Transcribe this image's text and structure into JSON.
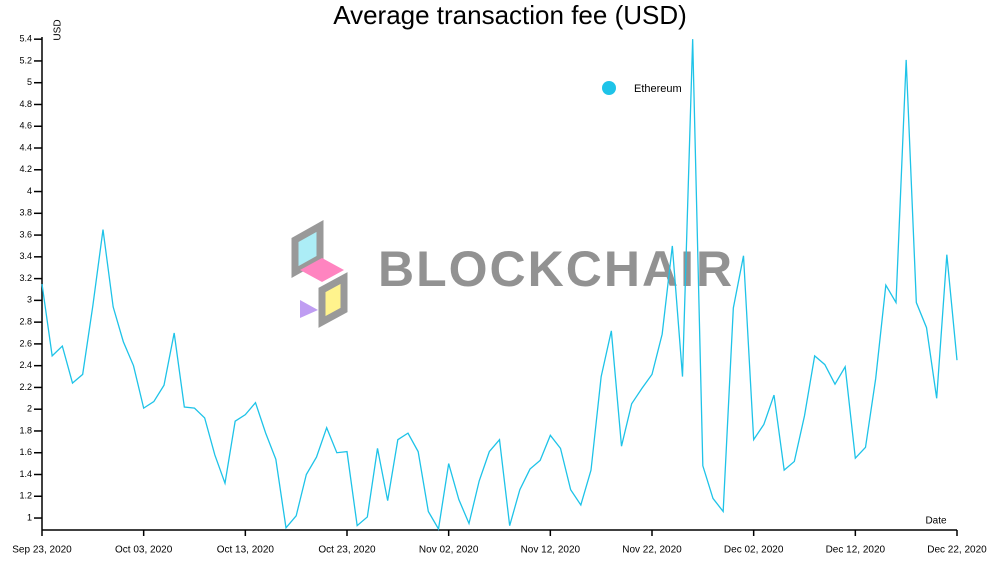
{
  "chart_data": {
    "type": "line",
    "title": "Average transaction fee (USD)",
    "y_label": "USD",
    "x_label": "Date",
    "watermark": "BLOCKCHAIR",
    "legend_position": "upper-center",
    "x": [
      "2020-09-23",
      "2020-09-24",
      "2020-09-25",
      "2020-09-26",
      "2020-09-27",
      "2020-09-28",
      "2020-09-29",
      "2020-09-30",
      "2020-10-01",
      "2020-10-02",
      "2020-10-03",
      "2020-10-04",
      "2020-10-05",
      "2020-10-06",
      "2020-10-07",
      "2020-10-08",
      "2020-10-09",
      "2020-10-10",
      "2020-10-11",
      "2020-10-12",
      "2020-10-13",
      "2020-10-14",
      "2020-10-15",
      "2020-10-16",
      "2020-10-17",
      "2020-10-18",
      "2020-10-19",
      "2020-10-20",
      "2020-10-21",
      "2020-10-22",
      "2020-10-23",
      "2020-10-24",
      "2020-10-25",
      "2020-10-26",
      "2020-10-27",
      "2020-10-28",
      "2020-10-29",
      "2020-10-30",
      "2020-10-31",
      "2020-11-01",
      "2020-11-02",
      "2020-11-03",
      "2020-11-04",
      "2020-11-05",
      "2020-11-06",
      "2020-11-07",
      "2020-11-08",
      "2020-11-09",
      "2020-11-10",
      "2020-11-11",
      "2020-11-12",
      "2020-11-13",
      "2020-11-14",
      "2020-11-15",
      "2020-11-16",
      "2020-11-17",
      "2020-11-18",
      "2020-11-19",
      "2020-11-20",
      "2020-11-21",
      "2020-11-22",
      "2020-11-23",
      "2020-11-24",
      "2020-11-25",
      "2020-11-26",
      "2020-11-27",
      "2020-11-28",
      "2020-11-29",
      "2020-11-30",
      "2020-12-01",
      "2020-12-02",
      "2020-12-03",
      "2020-12-04",
      "2020-12-05",
      "2020-12-06",
      "2020-12-07",
      "2020-12-08",
      "2020-12-09",
      "2020-12-10",
      "2020-12-11",
      "2020-12-12",
      "2020-12-13",
      "2020-12-14",
      "2020-12-15",
      "2020-12-16",
      "2020-12-17",
      "2020-12-18",
      "2020-12-19",
      "2020-12-20",
      "2020-12-21",
      "2020-12-22"
    ],
    "series": [
      {
        "name": "Ethereum",
        "color": "#1ec3e8",
        "values": [
          3.15,
          2.49,
          2.58,
          2.24,
          2.32,
          2.95,
          3.65,
          2.94,
          2.62,
          2.4,
          2.01,
          2.07,
          2.22,
          2.7,
          2.02,
          2.01,
          1.92,
          1.58,
          1.32,
          1.89,
          1.95,
          2.06,
          1.78,
          1.54,
          0.91,
          1.02,
          1.4,
          1.56,
          1.83,
          1.6,
          1.61,
          0.93,
          1.01,
          1.64,
          1.16,
          1.72,
          1.78,
          1.61,
          1.06,
          0.9,
          1.5,
          1.17,
          0.95,
          1.34,
          1.61,
          1.72,
          0.93,
          1.26,
          1.45,
          1.53,
          1.76,
          1.64,
          1.26,
          1.12,
          1.44,
          2.3,
          2.72,
          1.66,
          2.05,
          2.19,
          2.32,
          2.69,
          3.5,
          2.3,
          5.4,
          1.48,
          1.18,
          1.06,
          2.93,
          3.41,
          1.72,
          1.86,
          2.13,
          1.44,
          1.52,
          1.94,
          2.49,
          2.41,
          2.23,
          2.39,
          1.55,
          1.65,
          2.28,
          3.14,
          2.98,
          5.21,
          2.98,
          2.75,
          2.1,
          3.42,
          2.45
        ]
      }
    ],
    "xlim": [
      "2020-09-23",
      "2020-12-22"
    ],
    "xticks": [
      {
        "value": "2020-09-23",
        "label": "Sep 23, 2020"
      },
      {
        "value": "2020-10-03",
        "label": "Oct 03, 2020"
      },
      {
        "value": "2020-10-13",
        "label": "Oct 13, 2020"
      },
      {
        "value": "2020-10-23",
        "label": "Oct 23, 2020"
      },
      {
        "value": "2020-11-02",
        "label": "Nov 02, 2020"
      },
      {
        "value": "2020-11-12",
        "label": "Nov 12, 2020"
      },
      {
        "value": "2020-11-22",
        "label": "Nov 22, 2020"
      },
      {
        "value": "2020-12-02",
        "label": "Dec 02, 2020"
      },
      {
        "value": "2020-12-12",
        "label": "Dec 12, 2020"
      },
      {
        "value": "2020-12-22",
        "label": "Dec 22, 2020"
      }
    ],
    "ylim": [
      0.89,
      5.42
    ],
    "yticks": [
      1,
      1.2,
      1.4,
      1.6,
      1.8,
      2,
      2.2,
      2.4,
      2.6,
      2.8,
      3,
      3.2,
      3.4,
      3.6,
      3.8,
      4,
      4.2,
      4.4,
      4.6,
      4.8,
      5,
      5.2,
      5.4
    ]
  }
}
